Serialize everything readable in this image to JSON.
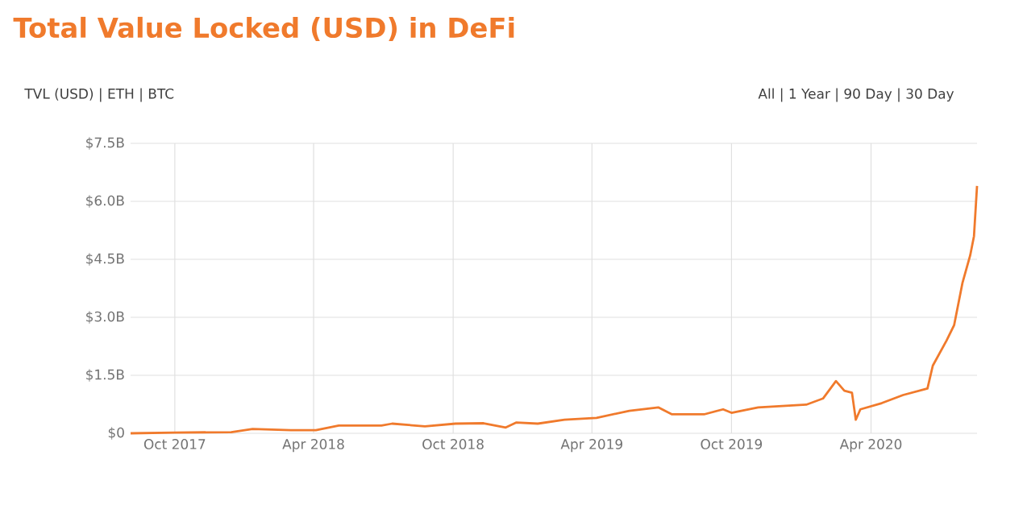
{
  "chart_data": {
    "type": "line",
    "title": "Total Value Locked (USD) in DeFi",
    "annotations": [
      "TVL (USD) | ETH | BTC",
      "All | 1 Year | 90 Day | 30 Day"
    ],
    "x": [
      "2017-08-04",
      "2017-10-01",
      "2017-12-14",
      "2018-01-11",
      "2018-03-02",
      "2018-04-04",
      "2018-05-04",
      "2018-06-29",
      "2018-07-13",
      "2018-08-25",
      "2018-10-04",
      "2018-11-10",
      "2018-12-09",
      "2018-12-23",
      "2019-01-20",
      "2019-02-24",
      "2019-04-07",
      "2019-05-20",
      "2019-06-27",
      "2019-07-15",
      "2019-08-26",
      "2019-09-20",
      "2019-10-01",
      "2019-11-05",
      "2020-01-07",
      "2020-01-29",
      "2020-02-15",
      "2020-02-26",
      "2020-03-07",
      "2020-03-12",
      "2020-03-18",
      "2020-04-15",
      "2020-05-13",
      "2020-06-14",
      "2020-06-21",
      "2020-07-09",
      "2020-07-19",
      "2020-07-30",
      "2020-08-09",
      "2020-08-14",
      "2020-08-18"
    ],
    "series": [
      {
        "color": "#f07a2c",
        "values": [
          0.0,
          0.02,
          0.03,
          0.11,
          0.08,
          0.08,
          0.2,
          0.2,
          0.25,
          0.18,
          0.25,
          0.26,
          0.15,
          0.28,
          0.25,
          0.35,
          0.4,
          0.58,
          0.67,
          0.49,
          0.49,
          0.62,
          0.53,
          0.67,
          0.74,
          0.9,
          1.35,
          1.1,
          1.05,
          0.35,
          0.62,
          0.78,
          0.99,
          1.16,
          1.75,
          2.4,
          2.8,
          3.9,
          4.6,
          5.1,
          6.4
        ]
      }
    ],
    "xlim": [
      "2017-08-04",
      "2020-08-18"
    ],
    "xticks": [
      {
        "value": "2017-10-01",
        "label": "Oct 2017"
      },
      {
        "value": "2018-04-01",
        "label": "Apr 2018"
      },
      {
        "value": "2018-10-01",
        "label": "Oct 2018"
      },
      {
        "value": "2019-04-01",
        "label": "Apr 2019"
      },
      {
        "value": "2019-10-01",
        "label": "Oct 2019"
      },
      {
        "value": "2020-04-01",
        "label": "Apr 2020"
      }
    ],
    "ylim": [
      0,
      7.5
    ],
    "yticks": [
      {
        "value": 0,
        "label": "$0"
      },
      {
        "value": 1.5,
        "label": "$1.5B"
      },
      {
        "value": 3.0,
        "label": "$3.0B"
      },
      {
        "value": 4.5,
        "label": "$4.5B"
      },
      {
        "value": 6.0,
        "label": "$6.0B"
      },
      {
        "value": 7.5,
        "label": "$7.5B"
      }
    ],
    "grid": true,
    "marker": "none",
    "line_style": "solid"
  }
}
